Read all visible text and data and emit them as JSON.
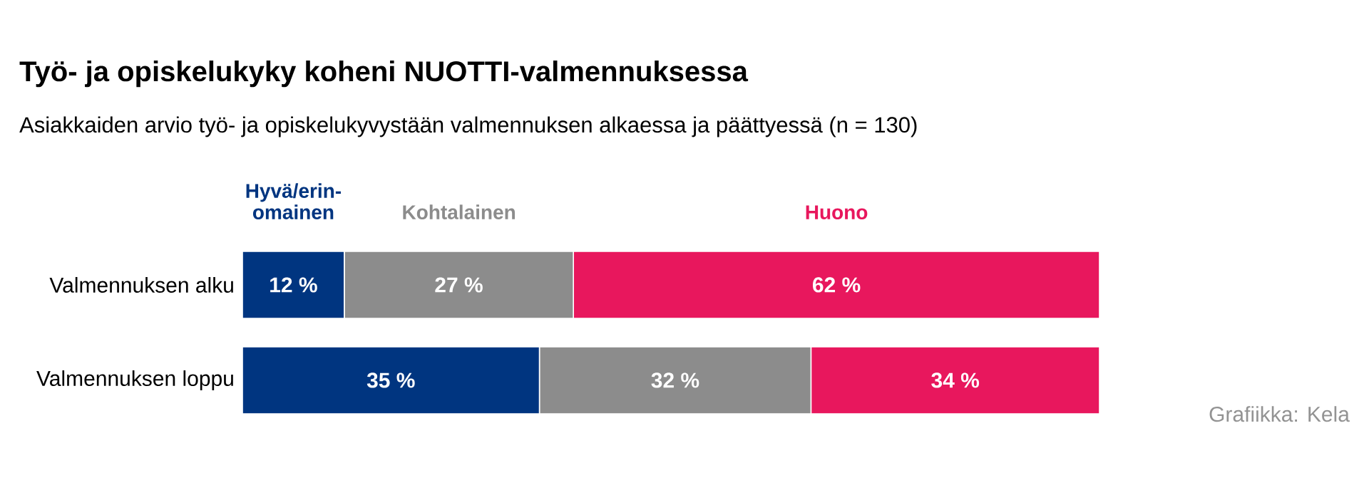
{
  "chart_data": {
    "type": "bar",
    "orientation": "horizontal",
    "stacked": true,
    "title": "Työ- ja opiskelukyky koheni NUOTTI-valmennuksessa",
    "subtitle": "Asiakkaiden arvio työ- ja opiskelukyvystään valmennuksen alkaessa ja päättyessä (n = 130)",
    "categories": [
      "Valmennuksen alku",
      "Valmennuksen loppu"
    ],
    "tick_labels": "y",
    "legend": "top",
    "annotations": [
      "Grafiikka: Kela"
    ],
    "series": [
      {
        "name": "Hyvä/erin-omainen",
        "color": "#003580",
        "values": [
          12,
          35
        ],
        "value_labels": [
          "12 %",
          "35 %"
        ]
      },
      {
        "name": "Kohtalainen",
        "color": "#8c8c8c",
        "values": [
          27,
          32
        ],
        "value_labels": [
          "27 %",
          "32 %"
        ]
      },
      {
        "name": "Huono",
        "color": "#e8175d",
        "values": [
          62,
          34
        ],
        "value_labels": [
          "62 %",
          "34 %"
        ]
      }
    ]
  }
}
